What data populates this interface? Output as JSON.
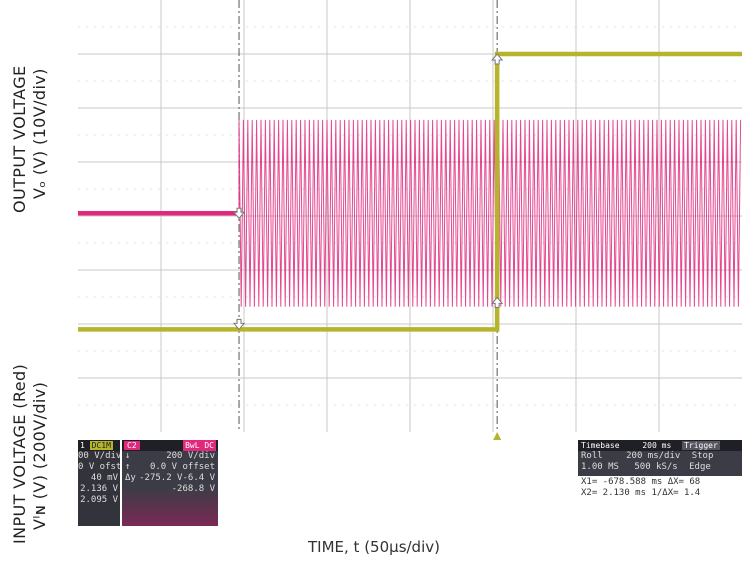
{
  "chart_data": {
    "type": "line",
    "xlabel": "TIME, t (50µs/div)",
    "ylabel_top_line1": "OUTPUT VOLTAGE",
    "ylabel_top_line2": "Vₒ (V) (10V/div)",
    "ylabel_bottom_line1": "INPUT VOLTAGE (Red)",
    "ylabel_bottom_line2": "Vᴵɴ (V) (200V/div)",
    "grid": true,
    "divisions": {
      "x": 8,
      "y": 8
    },
    "series": [
      {
        "color": "#e0287c",
        "segments": [
          {
            "kind": "flat",
            "x_start_div": 0,
            "x_end_div": 1.94,
            "level_div": 3.95
          },
          {
            "kind": "oscillating",
            "x_start_div": 1.94,
            "x_end_div": 8.0,
            "center_div": 3.95,
            "amplitude_div": 1.73
          }
        ]
      },
      {
        "color": "#b5b42a",
        "segments": [
          {
            "kind": "flat",
            "x_start_div": 0,
            "x_end_div": 5.05,
            "level_div": 6.1
          },
          {
            "kind": "flat",
            "x_start_div": 5.05,
            "x_end_div": 8.0,
            "level_div": 1.0
          }
        ]
      }
    ],
    "cursors": [
      {
        "x_div": 1.94,
        "style": "dash-dot"
      },
      {
        "x_div": 5.05,
        "style": "dash-dot"
      }
    ]
  },
  "channel_panel": {
    "ch1_head_a": "1",
    "ch1_head_b": "DC1M",
    "ch1_rows": [
      "00 V/div",
      "0 V ofst",
      "40 mV",
      "2.136 V",
      "2.095 V"
    ],
    "ch2_head_a": "C2",
    "ch2_head_b": "BwL DC",
    "ch2_rows": [
      {
        "sym": "",
        "val": "200 V/div"
      },
      {
        "sym": "",
        "val": "0.0 V offset"
      },
      {
        "sym": "↓",
        "val": "-6.4 V"
      },
      {
        "sym": "↑",
        "val": "-275.2 V"
      },
      {
        "sym": "Δy",
        "val": "-268.8 V"
      }
    ]
  },
  "timebase_panel": {
    "timebase_label": "Timebase",
    "timebase_value": "200 ms",
    "trigger_label": "Trigger",
    "row1_a": "Roll",
    "row1_b": "200 ms/div",
    "row1_c": "Stop",
    "row2_a": "1.00 MS",
    "row2_b": "500 kS/s",
    "row2_c": "Edge",
    "cursor_row1": "X1= -678.588 ms   ΔX= 68",
    "cursor_row2": "X2=    2.130 ms  1/ΔX= 1.4"
  },
  "colors": {
    "grid": "#c8c8c8",
    "output": "#e0287c",
    "input": "#b5b42a",
    "panel_bg": "#3c3c46"
  }
}
